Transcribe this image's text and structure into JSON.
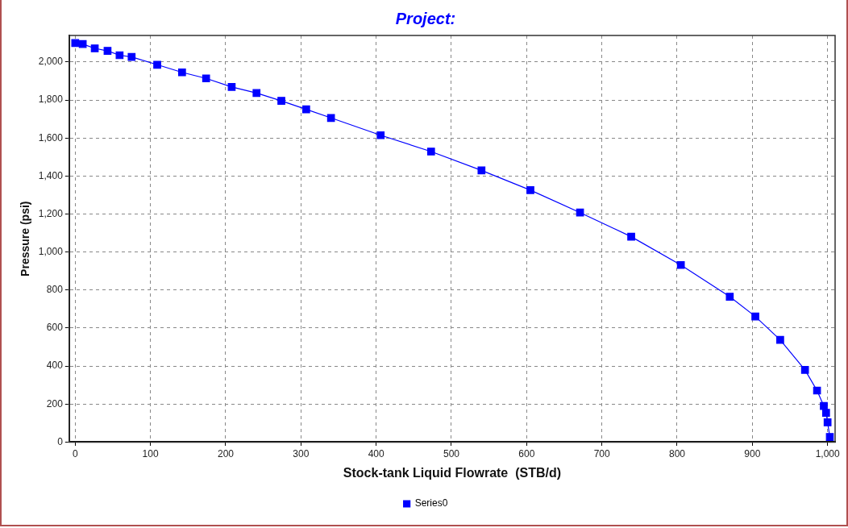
{
  "chart_data": {
    "type": "line",
    "title": "Project:",
    "xlabel": "Stock-tank Liquid Flowrate  (STB/d)",
    "ylabel": "Pressure (psi)",
    "xlim": [
      -8,
      1010
    ],
    "xticks": [
      {
        "value": 0,
        "label": "0"
      },
      {
        "value": 100,
        "label": "100"
      },
      {
        "value": 200,
        "label": "200"
      },
      {
        "value": 300,
        "label": "300"
      },
      {
        "value": 400,
        "label": "400"
      },
      {
        "value": 500,
        "label": "500"
      },
      {
        "value": 600,
        "label": "600"
      },
      {
        "value": 700,
        "label": "700"
      },
      {
        "value": 800,
        "label": "800"
      },
      {
        "value": 900,
        "label": "900"
      },
      {
        "value": 1000,
        "label": "1,000"
      }
    ],
    "ylim": [
      0,
      2140
    ],
    "yticks": [
      {
        "value": 0,
        "label": "0"
      },
      {
        "value": 200,
        "label": "200"
      },
      {
        "value": 400,
        "label": "400"
      },
      {
        "value": 600,
        "label": "600"
      },
      {
        "value": 800,
        "label": "800"
      },
      {
        "value": 1000,
        "label": "1,000"
      },
      {
        "value": 1200,
        "label": "1,200"
      },
      {
        "value": 1400,
        "label": "1,400"
      },
      {
        "value": 1600,
        "label": "1,600"
      },
      {
        "value": 1800,
        "label": "1,800"
      },
      {
        "value": 2000,
        "label": "2,000"
      }
    ],
    "grid": true,
    "legend": "bottom",
    "marker": "square",
    "line_style": "solid",
    "series": [
      {
        "name": "Series0",
        "color": "#0000ff",
        "x": [
          0,
          10,
          26,
          43,
          59,
          75,
          109,
          142,
          174,
          208,
          241,
          274,
          307,
          340,
          406,
          473,
          540,
          605,
          671,
          739,
          805,
          870,
          904,
          937,
          970,
          986,
          995,
          998,
          1000,
          1003
        ],
        "values": [
          2100,
          2095,
          2072,
          2059,
          2036,
          2027,
          1986,
          1946,
          1914,
          1869,
          1837,
          1796,
          1751,
          1706,
          1615,
          1529,
          1430,
          1326,
          1208,
          1081,
          932,
          765,
          661,
          538,
          380,
          271,
          190,
          154,
          104,
          27
        ]
      }
    ]
  }
}
